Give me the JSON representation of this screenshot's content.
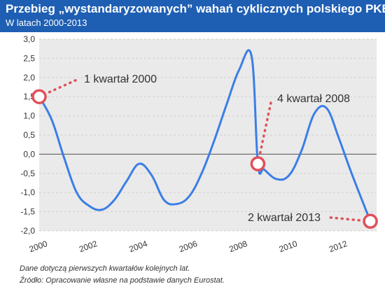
{
  "header": {
    "title": "Przebieg „wystandaryzowanych” wahań cyklicznych polskiego PKB",
    "subtitle": "W latach 2000-2013"
  },
  "footnotes": [
    "Dane dotyczą pierwszych kwartałów kolejnych lat.",
    "Źródło: Opracowanie własne na podstawie danych Eurostat."
  ],
  "colors": {
    "header_bg": "#1f5fb3",
    "line": "#3b7ee6",
    "marker": "#e0505a",
    "plot_bg": "#eaeaea"
  },
  "chart_data": {
    "type": "line",
    "title": "",
    "xlabel": "",
    "ylabel": "",
    "x_ticks": [
      "2000",
      "2002",
      "2004",
      "2006",
      "2008",
      "2010",
      "2012"
    ],
    "x_tick_values": [
      2000,
      2002,
      2004,
      2006,
      2008,
      2010,
      2012
    ],
    "y_ticks": [
      "3,0",
      "2,5",
      "2,0",
      "1,5",
      "1,0",
      "0,5",
      "0,0",
      "-0,5",
      "-1,0",
      "-1,5",
      "-2,0"
    ],
    "y_tick_values": [
      3.0,
      2.5,
      2.0,
      1.5,
      1.0,
      0.5,
      0.0,
      -0.5,
      -1.0,
      -1.5,
      -2.0
    ],
    "xlim": [
      2000,
      2013.5
    ],
    "ylim": [
      -2.0,
      3.0
    ],
    "grid": "horizontal",
    "series": [
      {
        "x": [
          2000.0,
          2000.5,
          2001.0,
          2001.5,
          2002.0,
          2002.5,
          2003.0,
          2003.5,
          2004.0,
          2004.5,
          2005.0,
          2005.5,
          2006.0,
          2006.5,
          2007.0,
          2007.5,
          2008.0,
          2008.5,
          2008.75,
          2009.0,
          2009.5,
          2010.0,
          2010.5,
          2011.0,
          2011.5,
          2012.0,
          2012.5,
          2013.25
        ],
        "y": [
          1.5,
          0.9,
          -0.1,
          -1.0,
          -1.35,
          -1.45,
          -1.2,
          -0.7,
          -0.25,
          -0.55,
          -1.2,
          -1.3,
          -1.1,
          -0.5,
          0.35,
          1.3,
          2.2,
          2.55,
          -0.25,
          -0.4,
          -0.65,
          -0.55,
          0.1,
          1.05,
          1.2,
          0.4,
          -0.5,
          -1.75
        ]
      }
    ],
    "annotations": [
      {
        "label": "1 kwartał 2000",
        "x": 2000.0,
        "y": 1.5
      },
      {
        "label": "4 kwartał 2008",
        "x": 2008.75,
        "y": -0.25
      },
      {
        "label": "2 kwartał 2013",
        "x": 2013.25,
        "y": -1.75
      }
    ]
  }
}
